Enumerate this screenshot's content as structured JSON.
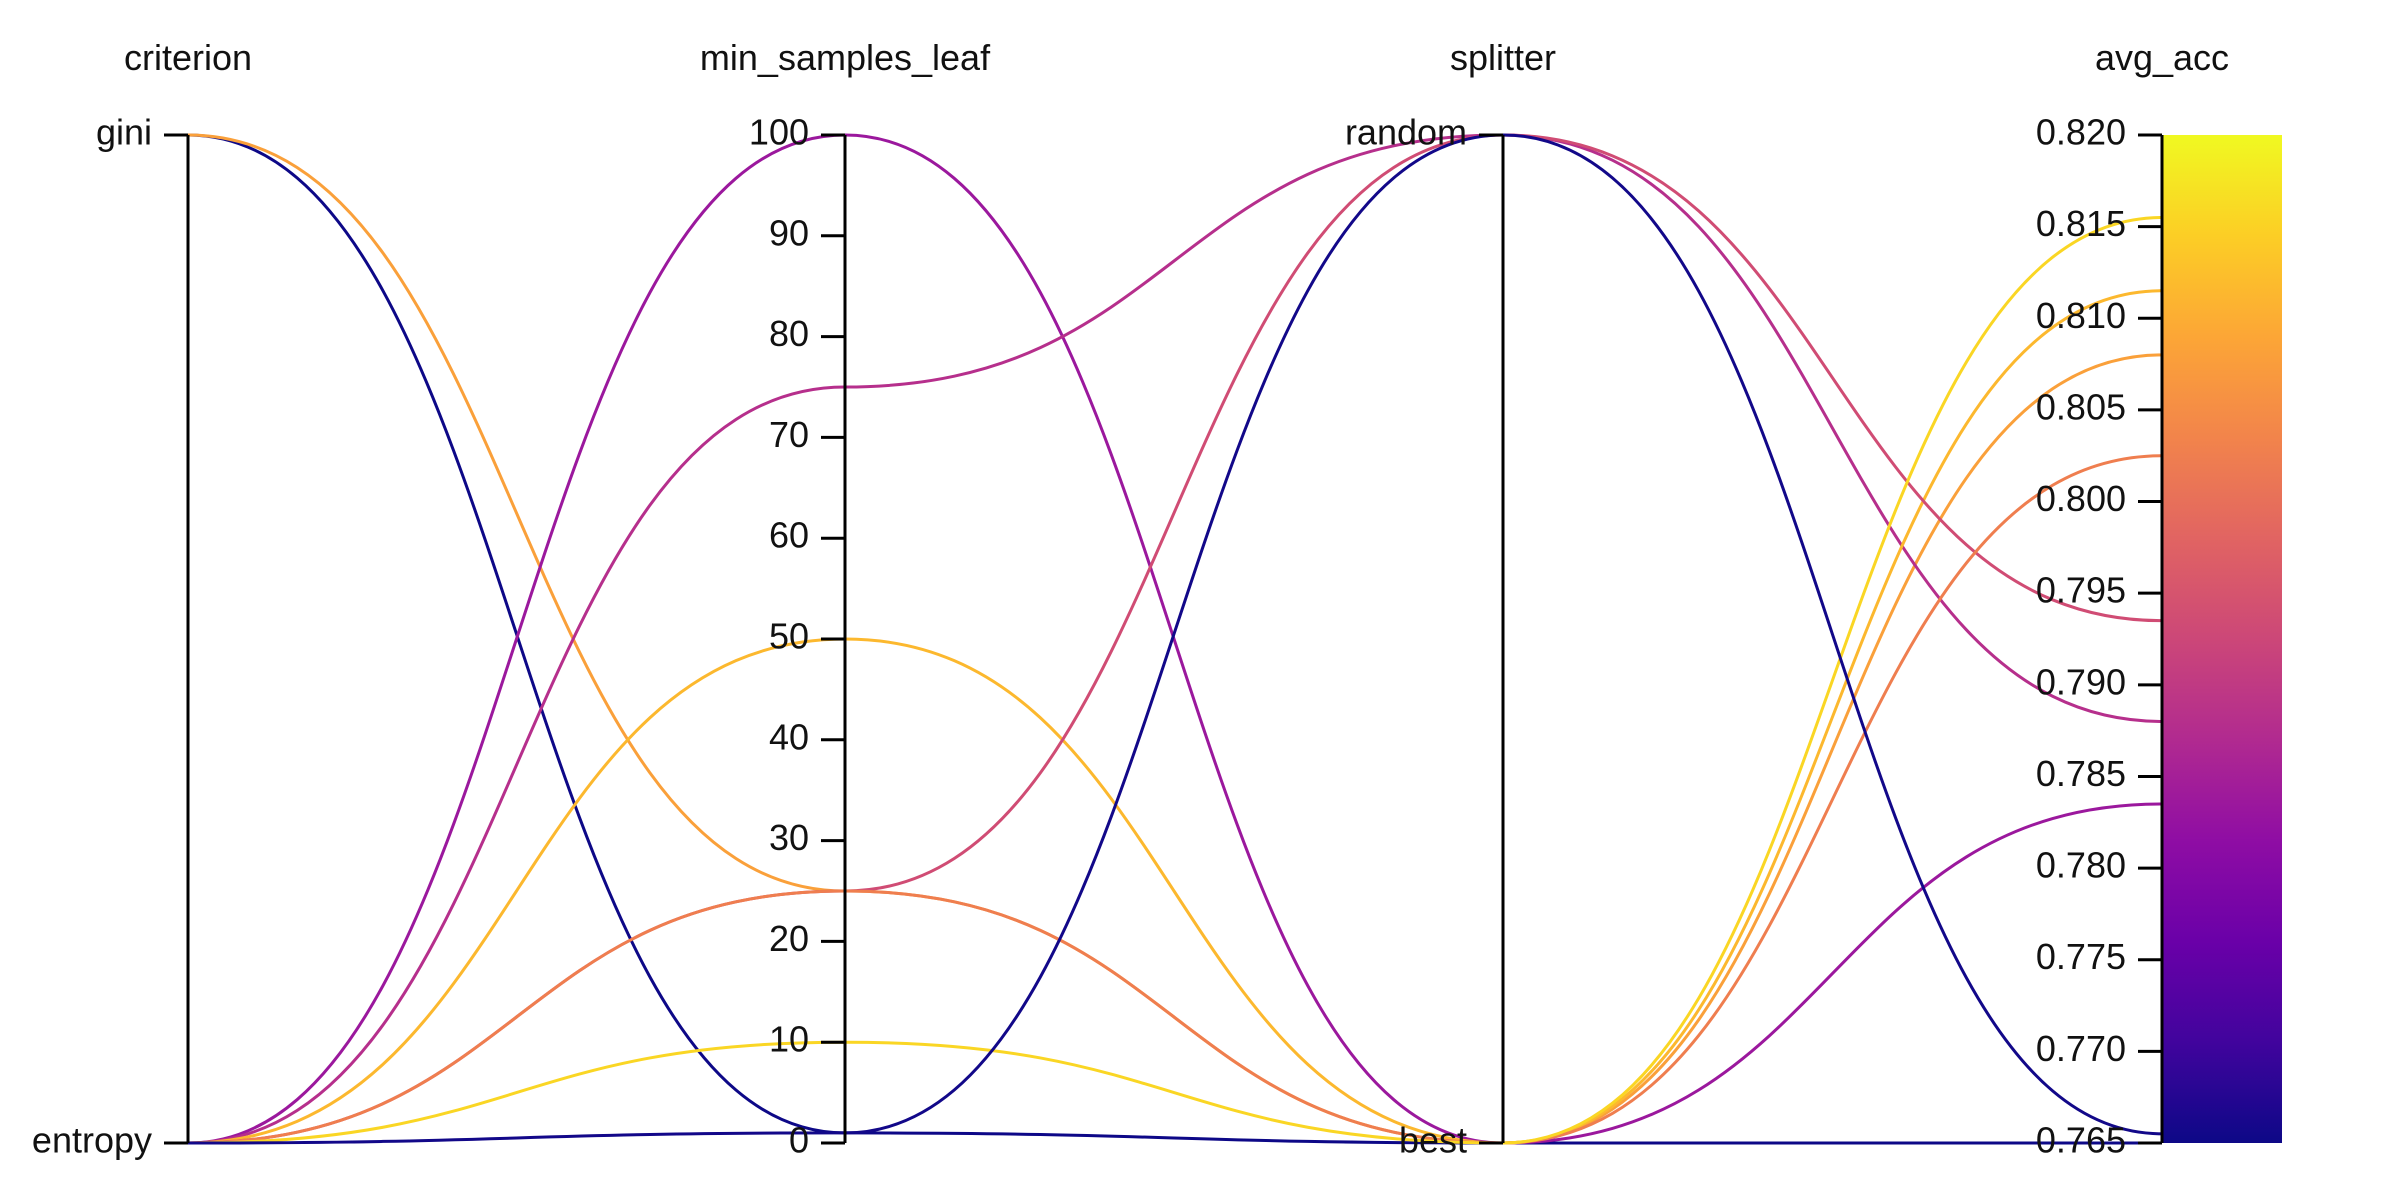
{
  "chart_data": {
    "type": "parallel_coordinates",
    "dimensions": [
      {
        "key": "criterion",
        "label": "criterion",
        "kind": "categorical",
        "categories": [
          "entropy",
          "gini"
        ]
      },
      {
        "key": "min_samples_leaf",
        "label": "min_samples_leaf",
        "kind": "numeric",
        "range": [
          0,
          100
        ],
        "ticks": [
          0,
          10,
          20,
          30,
          40,
          50,
          60,
          70,
          80,
          90,
          100
        ],
        "tick_labels": [
          "0",
          "10",
          "20",
          "30",
          "40",
          "50",
          "60",
          "70",
          "80",
          "90",
          "100"
        ]
      },
      {
        "key": "splitter",
        "label": "splitter",
        "kind": "categorical",
        "categories": [
          "best",
          "random"
        ]
      },
      {
        "key": "avg_acc",
        "label": "avg_acc",
        "kind": "numeric",
        "range": [
          0.765,
          0.82
        ],
        "ticks": [
          0.765,
          0.77,
          0.775,
          0.78,
          0.785,
          0.79,
          0.795,
          0.8,
          0.805,
          0.81,
          0.815,
          0.82
        ],
        "tick_labels": [
          "0.765",
          "0.770",
          "0.775",
          "0.780",
          "0.785",
          "0.790",
          "0.795",
          "0.800",
          "0.805",
          "0.810",
          "0.815",
          "0.820"
        ]
      }
    ],
    "colorscale": "plasma",
    "color_by": "avg_acc",
    "colorbar": true,
    "rows": [
      {
        "criterion": "gini",
        "min_samples_leaf": 1,
        "splitter": "best",
        "avg_acc": 0.765
      },
      {
        "criterion": "gini",
        "min_samples_leaf": 25,
        "splitter": "best",
        "avg_acc": 0.808
      },
      {
        "criterion": "entropy",
        "min_samples_leaf": 100,
        "splitter": "best",
        "avg_acc": 0.7835
      },
      {
        "criterion": "entropy",
        "min_samples_leaf": 75,
        "splitter": "random",
        "avg_acc": 0.788
      },
      {
        "criterion": "entropy",
        "min_samples_leaf": 50,
        "splitter": "best",
        "avg_acc": 0.8115
      },
      {
        "criterion": "entropy",
        "min_samples_leaf": 25,
        "splitter": "random",
        "avg_acc": 0.7935
      },
      {
        "criterion": "entropy",
        "min_samples_leaf": 25,
        "splitter": "best",
        "avg_acc": 0.8025
      },
      {
        "criterion": "entropy",
        "min_samples_leaf": 10,
        "splitter": "best",
        "avg_acc": 0.8155
      },
      {
        "criterion": "entropy",
        "min_samples_leaf": 1,
        "splitter": "random",
        "avg_acc": 0.7655
      }
    ]
  }
}
